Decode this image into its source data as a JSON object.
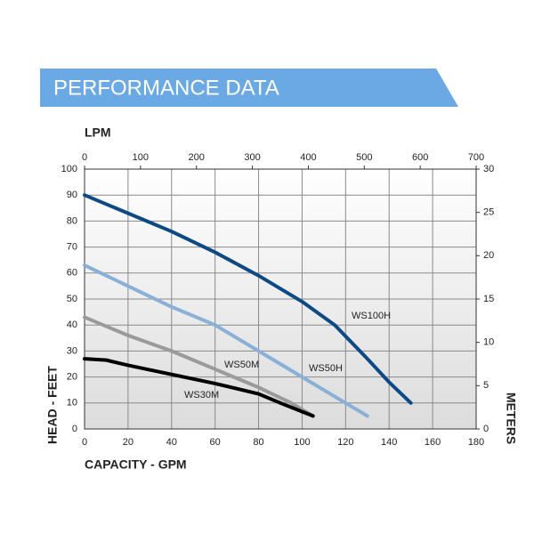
{
  "chart_data": {
    "type": "line",
    "title": "PERFORMANCE DATA",
    "x_label": "CAPACITY - GPM",
    "x2_label": "LPM",
    "y_label": "HEAD - FEET",
    "y2_label": "METERS",
    "xlim": [
      0,
      180
    ],
    "xticks": [
      0,
      20,
      40,
      60,
      80,
      100,
      120,
      140,
      160,
      180
    ],
    "x2lim": [
      0,
      700
    ],
    "x2ticks": [
      0,
      100,
      200,
      300,
      400,
      500,
      600,
      700
    ],
    "ylim": [
      0,
      100
    ],
    "yticks": [
      0,
      10,
      20,
      30,
      40,
      50,
      60,
      70,
      80,
      90,
      100
    ],
    "y2lim": [
      0,
      30
    ],
    "y2ticks": [
      0,
      5,
      10,
      15,
      20,
      25,
      30
    ],
    "grid": true,
    "series": [
      {
        "name": "WS100H",
        "color": "#0d4a85",
        "x": [
          0,
          20,
          40,
          60,
          80,
          100,
          115,
          130,
          140,
          150
        ],
        "values": [
          90,
          83,
          76,
          68,
          59,
          49,
          40,
          27,
          18,
          10
        ]
      },
      {
        "name": "WS50H",
        "color": "#8ab0d8",
        "x": [
          0,
          20,
          40,
          60,
          80,
          100,
          120,
          130
        ],
        "values": [
          63,
          55,
          47,
          40,
          30,
          20,
          10,
          5
        ]
      },
      {
        "name": "WS50M",
        "color": "#9a9a9a",
        "x": [
          0,
          20,
          40,
          60,
          80,
          95,
          105
        ],
        "values": [
          43,
          36,
          30,
          23,
          16,
          10,
          5
        ]
      },
      {
        "name": "WS30M",
        "color": "#000000",
        "x": [
          0,
          10,
          20,
          40,
          60,
          80,
          90,
          105
        ],
        "values": [
          27,
          26.5,
          24.5,
          21,
          17.5,
          13.5,
          10,
          5
        ]
      }
    ]
  }
}
